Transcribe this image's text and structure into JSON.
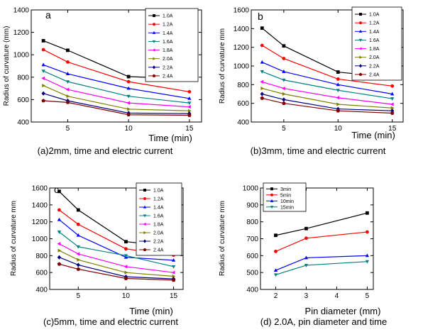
{
  "chart_data": [
    {
      "type": "line",
      "panel_label": "a",
      "caption": "(a)2mm, time and electric current",
      "xlabel": "Time (min)",
      "ylabel": "Radius of curvature (mm)",
      "xlim": [
        2,
        16
      ],
      "ylim": [
        400,
        1400
      ],
      "xticks": [
        5,
        10,
        15
      ],
      "yticks": [
        400,
        600,
        800,
        1000,
        1200,
        1400
      ],
      "x": [
        3,
        5,
        10,
        15
      ],
      "legend_position": "top-right",
      "series": [
        {
          "name": "1.0A",
          "color": "#000000",
          "marker": "square",
          "values": [
            1125,
            1040,
            805,
            785
          ]
        },
        {
          "name": "1.2A",
          "color": "#ff0000",
          "marker": "circle",
          "values": [
            1045,
            935,
            760,
            670
          ]
        },
        {
          "name": "1.4A",
          "color": "#0000ff",
          "marker": "triangle-up",
          "values": [
            910,
            830,
            700,
            610
          ]
        },
        {
          "name": "1.6A",
          "color": "#008080",
          "marker": "triangle-down",
          "values": [
            855,
            760,
            630,
            570
          ]
        },
        {
          "name": "1.8A",
          "color": "#ff00ff",
          "marker": "triangle-left",
          "values": [
            790,
            690,
            570,
            535
          ]
        },
        {
          "name": "2.0A",
          "color": "#808000",
          "marker": "triangle-right",
          "values": [
            725,
            630,
            515,
            500
          ]
        },
        {
          "name": "2.2A",
          "color": "#000080",
          "marker": "diamond",
          "values": [
            655,
            590,
            480,
            475
          ]
        },
        {
          "name": "2.4A",
          "color": "#800000",
          "marker": "pentagon",
          "values": [
            590,
            575,
            465,
            460
          ]
        }
      ]
    },
    {
      "type": "line",
      "panel_label": "b",
      "caption": "(b)3mm, time and electric current",
      "xlabel": "Time (min)",
      "ylabel": "Radius of curvature mm",
      "xlim": [
        2,
        16
      ],
      "ylim": [
        400,
        1600
      ],
      "xticks": [
        5,
        10,
        15
      ],
      "yticks": [
        400,
        600,
        800,
        1000,
        1200,
        1400,
        1600
      ],
      "x": [
        3,
        5,
        10,
        15
      ],
      "legend_position": "top-right",
      "series": [
        {
          "name": "1.0A",
          "color": "#000000",
          "marker": "square",
          "values": [
            1405,
            1215,
            935,
            875
          ]
        },
        {
          "name": "1.2A",
          "color": "#ff0000",
          "marker": "circle",
          "values": [
            1220,
            1080,
            860,
            785
          ]
        },
        {
          "name": "1.4A",
          "color": "#0000ff",
          "marker": "triangle-up",
          "values": [
            1040,
            940,
            800,
            700
          ]
        },
        {
          "name": "1.6A",
          "color": "#008080",
          "marker": "triangle-down",
          "values": [
            940,
            850,
            740,
            650
          ]
        },
        {
          "name": "1.8A",
          "color": "#ff00ff",
          "marker": "triangle-left",
          "values": [
            830,
            760,
            660,
            590
          ]
        },
        {
          "name": "2.0A",
          "color": "#808000",
          "marker": "triangle-right",
          "values": [
            760,
            700,
            590,
            550
          ]
        },
        {
          "name": "2.2A",
          "color": "#000080",
          "marker": "diamond",
          "values": [
            700,
            640,
            540,
            520
          ]
        },
        {
          "name": "2.4A",
          "color": "#800000",
          "marker": "pentagon",
          "values": [
            655,
            600,
            520,
            495
          ]
        }
      ]
    },
    {
      "type": "line",
      "panel_label": "c",
      "caption": "(c)5mm, time and electric current",
      "xlabel": "Time (min)",
      "ylabel": "Radius of curvature mm",
      "xlim": [
        2,
        16
      ],
      "ylim": [
        400,
        1600
      ],
      "xticks": [
        5,
        10,
        15
      ],
      "yticks": [
        400,
        600,
        800,
        1000,
        1200,
        1400,
        1600
      ],
      "x": [
        3,
        5,
        10,
        15
      ],
      "legend_position": "top-right",
      "series": [
        {
          "name": "1.0A",
          "color": "#000000",
          "marker": "square",
          "values": [
            1560,
            1340,
            965,
            910
          ]
        },
        {
          "name": "1.2A",
          "color": "#ff0000",
          "marker": "circle",
          "values": [
            1340,
            1170,
            880,
            805
          ]
        },
        {
          "name": "1.4A",
          "color": "#0000ff",
          "marker": "triangle-up",
          "values": [
            1225,
            1040,
            780,
            745
          ]
        },
        {
          "name": "1.6A",
          "color": "#008080",
          "marker": "triangle-down",
          "values": [
            1080,
            905,
            800,
            670
          ]
        },
        {
          "name": "1.8A",
          "color": "#ff00ff",
          "marker": "triangle-left",
          "values": [
            940,
            820,
            670,
            600
          ]
        },
        {
          "name": "2.0A",
          "color": "#808000",
          "marker": "triangle-right",
          "values": [
            860,
            750,
            600,
            555
          ]
        },
        {
          "name": "2.2A",
          "color": "#000080",
          "marker": "diamond",
          "values": [
            780,
            690,
            550,
            525
          ]
        },
        {
          "name": "2.4A",
          "color": "#800000",
          "marker": "pentagon",
          "values": [
            700,
            640,
            530,
            510
          ]
        }
      ]
    },
    {
      "type": "line",
      "panel_label": "d",
      "caption": "(d) 2.0A, pin diameter and time",
      "xlabel": "Pin diameter (mm)",
      "ylabel": "Radius of curvature mm",
      "xlim": [
        1.5,
        5.2
      ],
      "ylim": [
        400,
        1000
      ],
      "xticks": [
        2,
        3,
        4,
        5
      ],
      "yticks": [
        400,
        500,
        600,
        700,
        800,
        900,
        1000
      ],
      "x": [
        2,
        3,
        5
      ],
      "legend_position": "top-left",
      "series": [
        {
          "name": "3min",
          "color": "#000000",
          "marker": "square",
          "values": [
            720,
            760,
            852
          ]
        },
        {
          "name": "5min",
          "color": "#ff0000",
          "marker": "circle",
          "values": [
            625,
            703,
            740
          ]
        },
        {
          "name": "10min",
          "color": "#0000ff",
          "marker": "triangle-up",
          "values": [
            513,
            587,
            600
          ]
        },
        {
          "name": "15min",
          "color": "#008080",
          "marker": "triangle-down",
          "values": [
            487,
            543,
            565
          ]
        }
      ]
    }
  ]
}
